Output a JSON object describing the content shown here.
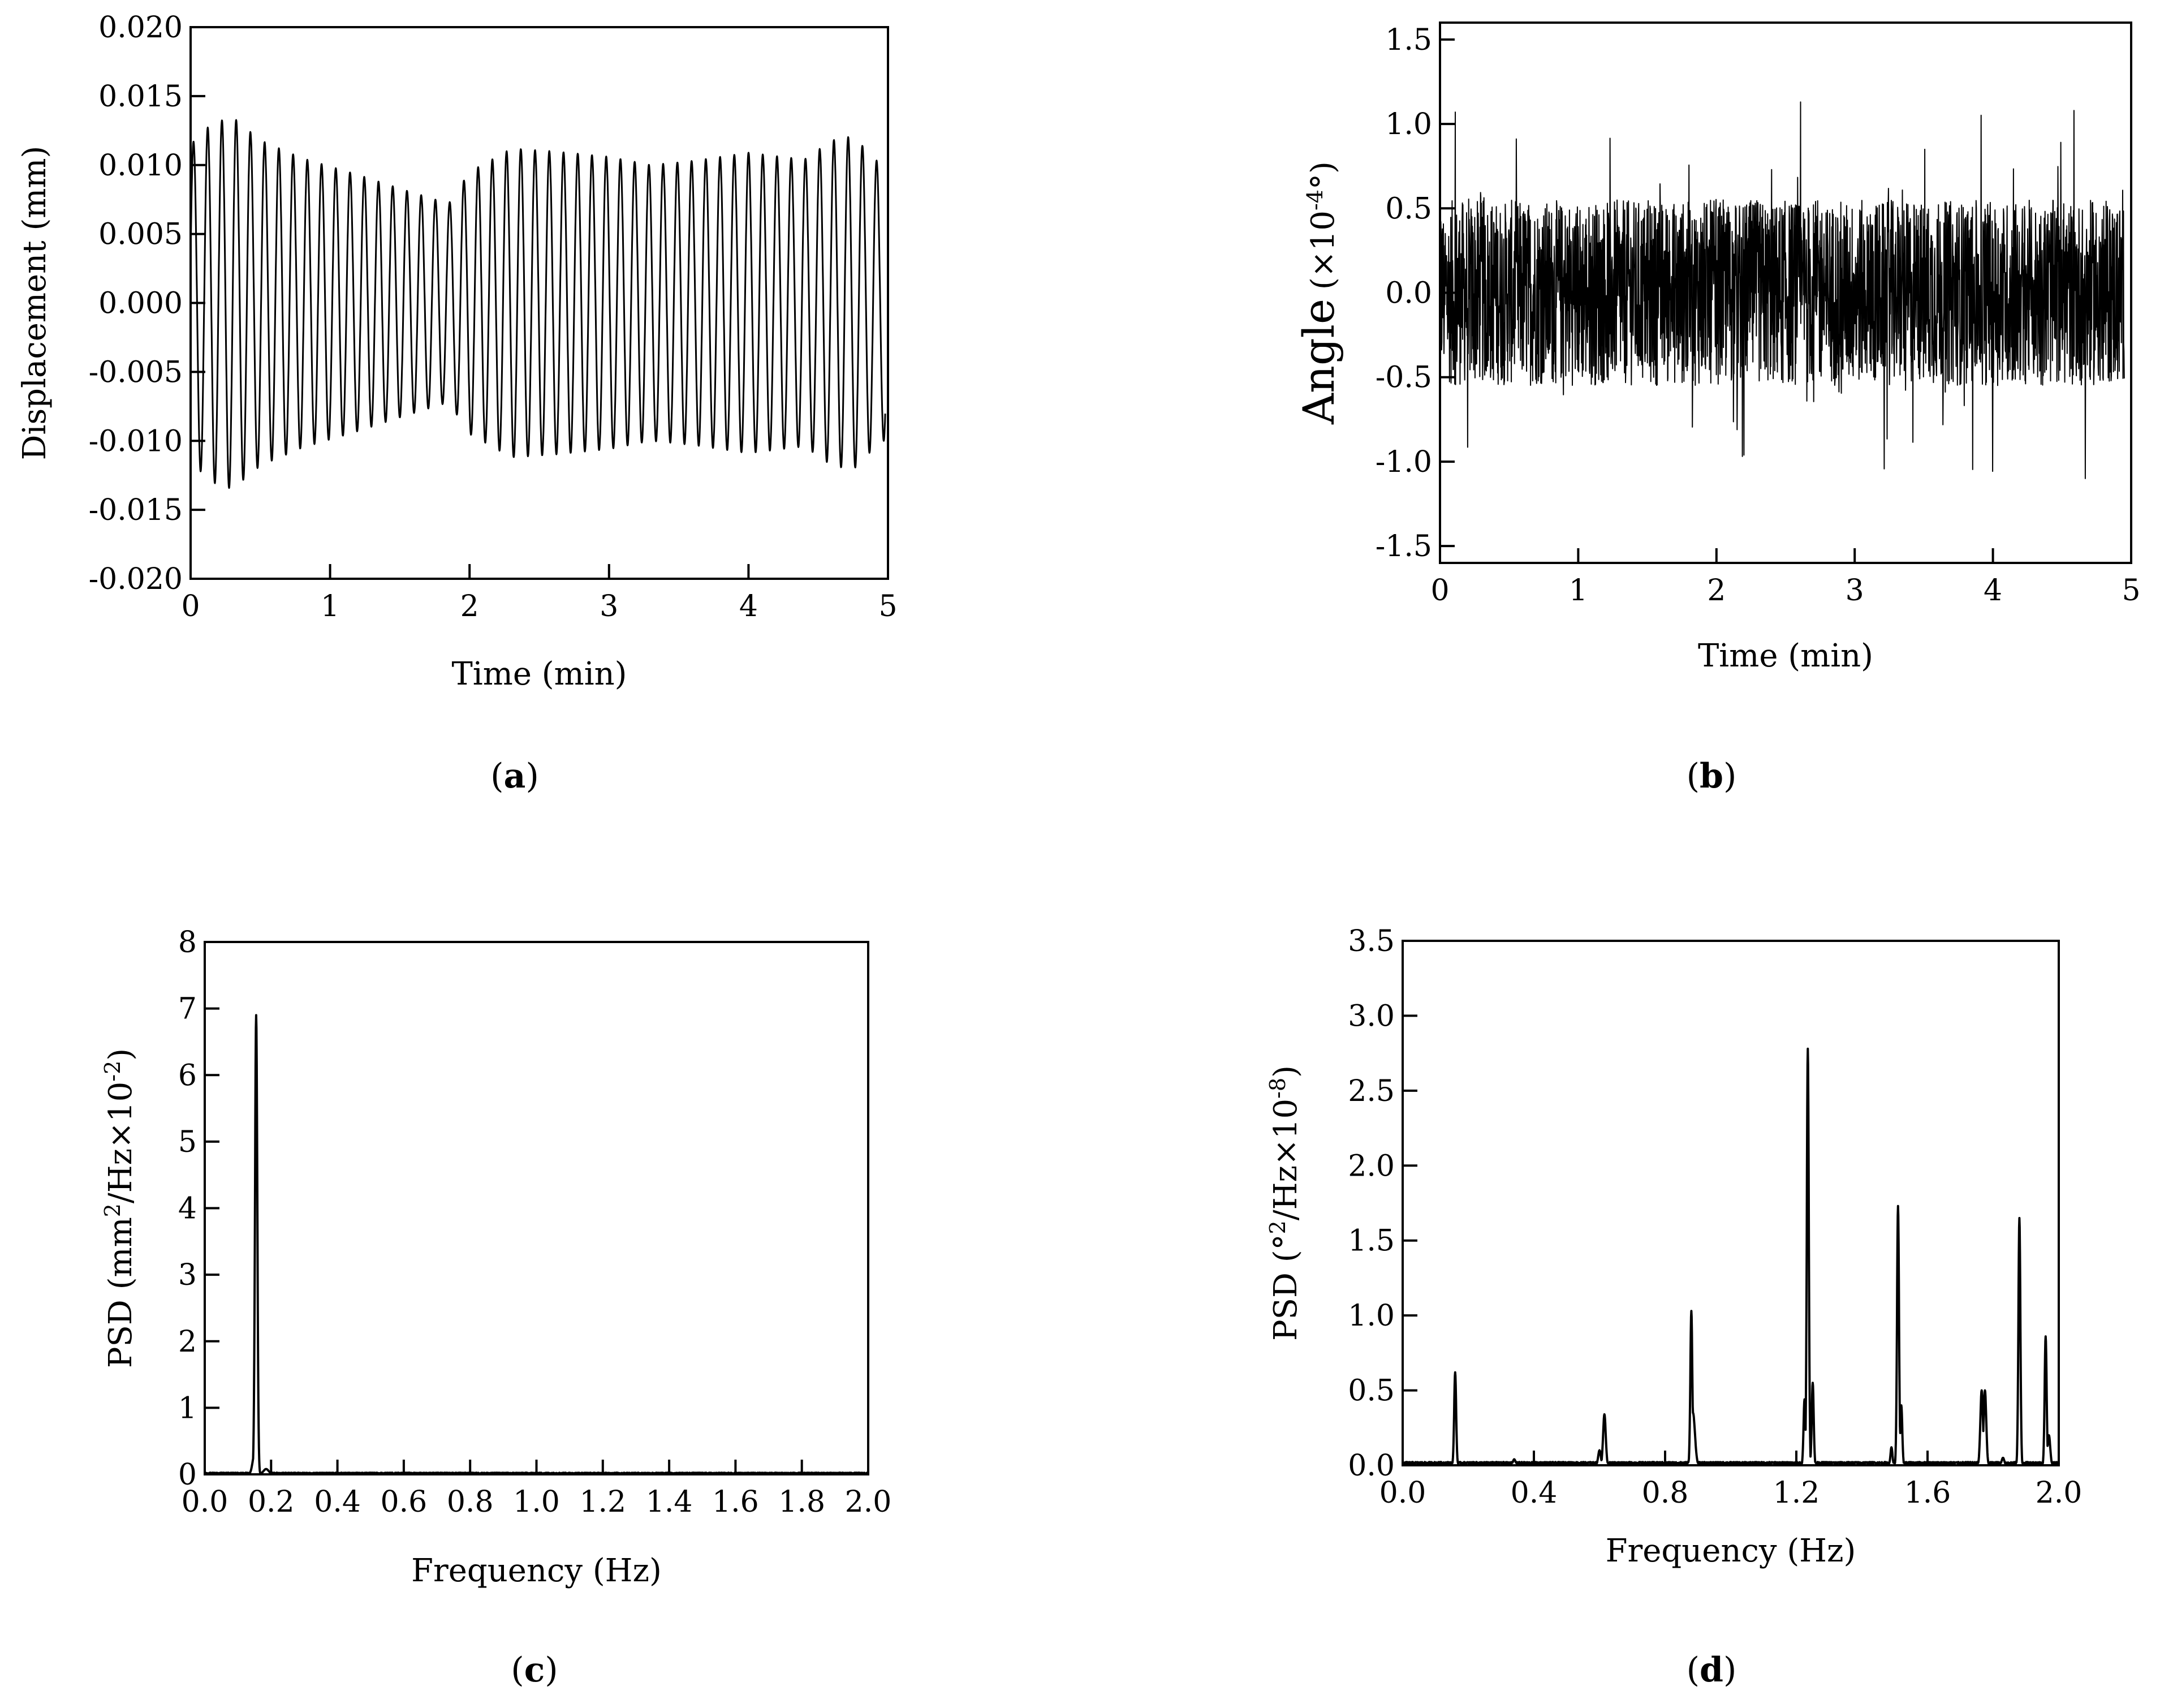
{
  "figure": {
    "panels": [
      "a",
      "b",
      "c",
      "d"
    ]
  },
  "chart_data": [
    {
      "id": "a",
      "type": "line",
      "caption": "a",
      "xlabel": "Time (min)",
      "ylabel": "Displacement (mm)",
      "xlim": [
        0,
        5
      ],
      "ylim": [
        -0.02,
        0.02
      ],
      "xticks": [
        0,
        1,
        2,
        3,
        4,
        5
      ],
      "xtick_labels": [
        "0",
        "1",
        "2",
        "3",
        "4",
        "5"
      ],
      "yticks": [
        -0.02,
        -0.015,
        -0.01,
        -0.005,
        0,
        0.005,
        0.01,
        0.015,
        0.02
      ],
      "ytick_labels": [
        "-0.020",
        "-0.015",
        "-0.010",
        "-0.005",
        "0.000",
        "0.005",
        "0.010",
        "0.015",
        "0.020"
      ],
      "series": [
        {
          "name": "displacement",
          "description": "sinusoidal oscillation about 10 cycles per minute with varying amplitude",
          "cycles_per_min": 9.8,
          "amplitude_envelope": [
            [
              0.0,
              0.0115
            ],
            [
              0.15,
              0.013
            ],
            [
              0.3,
              0.0135
            ],
            [
              0.5,
              0.0118
            ],
            [
              0.8,
              0.0105
            ],
            [
              1.2,
              0.0093
            ],
            [
              1.5,
              0.0083
            ],
            [
              1.85,
              0.0072
            ],
            [
              2.0,
              0.0095
            ],
            [
              2.3,
              0.0112
            ],
            [
              2.6,
              0.011
            ],
            [
              3.0,
              0.0106
            ],
            [
              3.3,
              0.01
            ],
            [
              3.6,
              0.0103
            ],
            [
              4.0,
              0.0109
            ],
            [
              4.4,
              0.0104
            ],
            [
              4.6,
              0.0118
            ],
            [
              4.75,
              0.0121
            ],
            [
              4.95,
              0.01
            ]
          ]
        }
      ]
    },
    {
      "id": "b",
      "type": "line",
      "caption": "b",
      "xlabel": "Time (min)",
      "ylabel_main": "Angle",
      "ylabel_unit_prefix": "(×10",
      "ylabel_unit_exp": "-4",
      "ylabel_unit_suffix": "°)",
      "xlim": [
        0,
        5
      ],
      "ylim": [
        -1.6,
        1.6
      ],
      "xticks": [
        0,
        1,
        2,
        3,
        4,
        5
      ],
      "xtick_labels": [
        "0",
        "1",
        "2",
        "3",
        "4",
        "5"
      ],
      "yticks": [
        -1.5,
        -1.0,
        -0.5,
        0,
        0.5,
        1.0,
        1.5
      ],
      "ytick_labels": [
        "-1.5",
        "-1.0",
        "-0.5",
        "0.0",
        "0.5",
        "1.0",
        "1.5"
      ],
      "series": [
        {
          "name": "angle",
          "description": "dense noise-like signal, core band about ±0.5, spikes to about ±1.1",
          "band": 0.55,
          "max_spike": 1.15,
          "min_spike": -1.15,
          "t_end": 4.95
        }
      ]
    },
    {
      "id": "c",
      "type": "line",
      "caption": "c",
      "xlabel": "Frequency (Hz)",
      "ylabel_prefix": "PSD (mm",
      "ylabel_sup1": "2",
      "ylabel_mid": "/Hz×10",
      "ylabel_sup2": "-2",
      "ylabel_suffix": ")",
      "xlim": [
        0,
        2
      ],
      "ylim": [
        0,
        8
      ],
      "xticks": [
        0,
        0.2,
        0.4,
        0.6,
        0.8,
        1.0,
        1.2,
        1.4,
        1.6,
        1.8,
        2.0
      ],
      "xtick_labels": [
        "0.0",
        "0.2",
        "0.4",
        "0.6",
        "0.8",
        "1.0",
        "1.2",
        "1.4",
        "1.6",
        "1.8",
        "2.0"
      ],
      "yticks": [
        0,
        1,
        2,
        3,
        4,
        5,
        6,
        7,
        8
      ],
      "ytick_labels": [
        "0",
        "1",
        "2",
        "3",
        "4",
        "5",
        "6",
        "7",
        "8"
      ],
      "series": [
        {
          "name": "psd-displacement",
          "peaks": [
            {
              "f": 0.155,
              "value": 6.9,
              "width": 0.0035
            },
            {
              "f": 0.15,
              "value": 0.3,
              "width": 0.006
            },
            {
              "f": 0.185,
              "value": 0.08,
              "width": 0.008
            }
          ],
          "baseline": 0.01
        }
      ]
    },
    {
      "id": "d",
      "type": "line",
      "caption": "d",
      "xlabel": "Frequency (Hz)",
      "ylabel_prefix": "PSD (°",
      "ylabel_sup1": "2",
      "ylabel_mid": "/Hz×10",
      "ylabel_sup2": "-8",
      "ylabel_suffix": ")",
      "xlim": [
        0,
        2
      ],
      "ylim": [
        0,
        3.5
      ],
      "xticks": [
        0,
        0.4,
        0.8,
        1.2,
        1.6,
        2.0
      ],
      "xtick_labels": [
        "0.0",
        "0.4",
        "0.8",
        "1.2",
        "1.6",
        "2.0"
      ],
      "yticks": [
        0,
        0.5,
        1.0,
        1.5,
        2.0,
        2.5,
        3.0,
        3.5
      ],
      "ytick_labels": [
        "0.0",
        "0.5",
        "1.0",
        "1.5",
        "2.0",
        "2.5",
        "3.0",
        "3.5"
      ],
      "series": [
        {
          "name": "psd-angle",
          "peaks": [
            {
              "f": 0.16,
              "value": 0.62,
              "width": 0.003
            },
            {
              "f": 0.615,
              "value": 0.34,
              "width": 0.004
            },
            {
              "f": 0.6,
              "value": 0.1,
              "width": 0.004
            },
            {
              "f": 0.88,
              "value": 1.03,
              "width": 0.003
            },
            {
              "f": 0.885,
              "value": 0.35,
              "width": 0.006
            },
            {
              "f": 1.225,
              "value": 0.44,
              "width": 0.003
            },
            {
              "f": 1.235,
              "value": 2.78,
              "width": 0.003
            },
            {
              "f": 1.25,
              "value": 0.55,
              "width": 0.003
            },
            {
              "f": 1.49,
              "value": 0.12,
              "width": 0.003
            },
            {
              "f": 1.51,
              "value": 1.73,
              "width": 0.003
            },
            {
              "f": 1.52,
              "value": 0.4,
              "width": 0.003
            },
            {
              "f": 1.765,
              "value": 0.5,
              "width": 0.004
            },
            {
              "f": 1.775,
              "value": 0.5,
              "width": 0.004
            },
            {
              "f": 1.88,
              "value": 1.65,
              "width": 0.003
            },
            {
              "f": 1.96,
              "value": 0.86,
              "width": 0.003
            },
            {
              "f": 1.97,
              "value": 0.2,
              "width": 0.004
            },
            {
              "f": 0.34,
              "value": 0.04,
              "width": 0.004
            },
            {
              "f": 1.83,
              "value": 0.05,
              "width": 0.004
            }
          ],
          "baseline": 0.01
        }
      ]
    }
  ]
}
